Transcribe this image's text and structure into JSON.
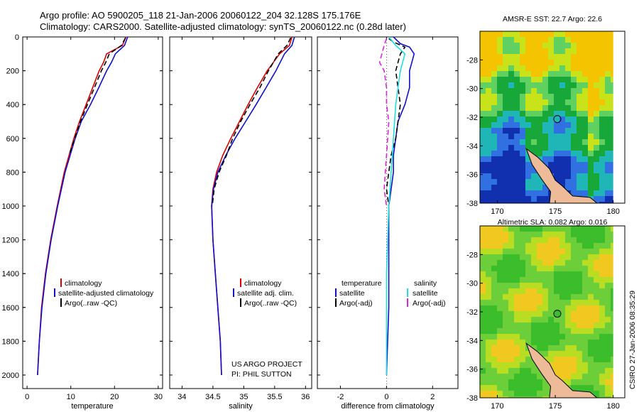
{
  "header": {
    "line1": "Argo profile: AO 5900205_118 21-Jan-2006 20060122_204 32.128S 175.176E",
    "line2": "Climatology: CARS2000. Satellite-adjusted climatology: synTS_20060122.nc (0.28d later)"
  },
  "credits": {
    "project": "US ARGO PROJECT",
    "pi": "PI: PHIL SUTTON",
    "stamp": "CSIRO 27-Jan-2006 08:35:29"
  },
  "colors": {
    "climatology": "#dd0000",
    "satellite": "#1010cc",
    "argo": "#000000",
    "cyan": "#22dddd",
    "magenta": "#dd22dd"
  },
  "chart_data": [
    {
      "type": "line",
      "xlabel": "temperature",
      "ylabel": "",
      "xlim": [
        -1,
        31
      ],
      "ylim": [
        2080,
        0
      ],
      "xticks": [
        0,
        10,
        20,
        30
      ],
      "yticks": [
        0,
        200,
        400,
        600,
        800,
        1000,
        1200,
        1400,
        1600,
        1800,
        2000
      ],
      "legend": [
        "climatology",
        "satellite-adjusted climatology",
        "Argo(..raw -QC)"
      ],
      "legend_position": "lower-right",
      "series": [
        {
          "name": "climatology",
          "color": "#dd0000",
          "dash": "solid",
          "depth": [
            0,
            50,
            100,
            150,
            200,
            300,
            400,
            500,
            600,
            800,
            1000,
            1200,
            1400,
            1600,
            1800,
            2000
          ],
          "values": [
            22.6,
            21.8,
            18.2,
            17.5,
            16.5,
            15.0,
            13.5,
            12.0,
            10.7,
            8.5,
            6.9,
            5.4,
            4.2,
            3.3,
            2.8,
            2.4
          ]
        },
        {
          "name": "satellite-adjusted climatology",
          "color": "#1010cc",
          "dash": "solid",
          "depth": [
            0,
            50,
            100,
            150,
            200,
            300,
            400,
            500,
            600,
            800,
            1000,
            1200,
            1400,
            1600,
            1800,
            2000
          ],
          "values": [
            23.0,
            22.3,
            20.2,
            19.3,
            18.2,
            16.4,
            14.5,
            12.4,
            11.0,
            8.7,
            7.0,
            5.5,
            4.3,
            3.4,
            2.8,
            2.4
          ]
        },
        {
          "name": "Argo(..raw -QC)",
          "color": "#000000",
          "dash": "dashed",
          "depth": [
            5,
            50,
            100,
            150,
            200,
            300,
            400,
            500,
            600,
            700
          ],
          "values": [
            22.5,
            21.6,
            18.8,
            18.0,
            17.0,
            15.4,
            13.8,
            12.2,
            10.9,
            9.6
          ]
        }
      ]
    },
    {
      "type": "line",
      "xlabel": "salinity",
      "ylabel": "",
      "xlim": [
        33.8,
        36.1
      ],
      "ylim": [
        2080,
        0
      ],
      "xticks": [
        34,
        34.5,
        35,
        35.5,
        36
      ],
      "legend": [
        "climatology",
        "satellite adj. clim.",
        "Argo(..raw -QC)"
      ],
      "legend_position": "lower-right",
      "series": [
        {
          "name": "climatology",
          "color": "#dd0000",
          "dash": "solid",
          "depth": [
            0,
            50,
            100,
            200,
            300,
            400,
            500,
            600,
            700,
            800,
            900,
            1000,
            1200,
            1400,
            1600,
            1800,
            2000
          ],
          "values": [
            35.78,
            35.74,
            35.58,
            35.38,
            35.22,
            35.07,
            34.93,
            34.79,
            34.66,
            34.56,
            34.5,
            34.48,
            34.5,
            34.54,
            34.58,
            34.62,
            34.64
          ]
        },
        {
          "name": "satellite adj. clim.",
          "color": "#1010cc",
          "dash": "solid",
          "depth": [
            0,
            50,
            100,
            200,
            300,
            400,
            500,
            600,
            700,
            800,
            900,
            1000,
            1200,
            1400,
            1600,
            1800,
            2000
          ],
          "values": [
            35.82,
            35.78,
            35.66,
            35.52,
            35.36,
            35.2,
            35.03,
            34.86,
            34.71,
            34.58,
            34.51,
            34.48,
            34.5,
            34.54,
            34.58,
            34.62,
            34.64
          ]
        },
        {
          "name": "Argo(..raw -QC)",
          "color": "#000000",
          "dash": "dashed",
          "depth": [
            5,
            50,
            100,
            200,
            300,
            400,
            500,
            600,
            700,
            800,
            900,
            1000
          ],
          "values": [
            35.76,
            35.7,
            35.56,
            35.4,
            35.26,
            35.1,
            34.95,
            34.82,
            34.72,
            34.6,
            34.52,
            34.49
          ]
        }
      ]
    },
    {
      "type": "line",
      "xlabel": "difference from climatology",
      "ylabel": "",
      "xlim": [
        -3,
        3.1
      ],
      "ylim": [
        2080,
        0
      ],
      "xticks": [
        -2,
        0,
        2
      ],
      "legend": [
        "temperature",
        "satellite",
        "Argo(-adj)",
        "salinity",
        "satellite",
        "Argo(-adj)"
      ],
      "legend_position": "lower-center",
      "series": [
        {
          "name": "satellite",
          "group": "temperature",
          "color": "#1010cc",
          "dash": "solid",
          "depth": [
            0,
            40,
            60,
            100,
            150,
            200,
            300,
            400,
            500,
            600,
            700,
            800,
            900,
            1000,
            1200,
            1400,
            1600,
            1800,
            2000
          ],
          "values": [
            0.3,
            0.6,
            1.0,
            1.2,
            1.1,
            1.0,
            1.0,
            0.8,
            0.5,
            0.4,
            0.3,
            0.3,
            0.2,
            0.1,
            0.1,
            0.1,
            0.1,
            0.05,
            0.0
          ]
        },
        {
          "name": "Argo(-adj)",
          "group": "temperature",
          "color": "#000000",
          "dash": "dashed",
          "depth": [
            10,
            30,
            60,
            100,
            150,
            200,
            300,
            400,
            500,
            600,
            700,
            800,
            900,
            1000
          ],
          "values": [
            0.1,
            0.3,
            0.8,
            0.6,
            0.5,
            0.4,
            0.5,
            0.6,
            0.5,
            0.4,
            0.2,
            0.1,
            0.0,
            0.1
          ]
        },
        {
          "name": "satellite",
          "group": "salinity",
          "color": "#22dddd",
          "dash": "solid",
          "depth": [
            0,
            50,
            100,
            200,
            300,
            400,
            600,
            800,
            1000,
            1200,
            1400,
            1600,
            1800,
            2000
          ],
          "values": [
            0.1,
            0.4,
            0.8,
            0.6,
            0.5,
            0.4,
            0.3,
            0.2,
            0.1,
            0.05,
            0.0,
            0.0,
            0.0,
            0.0
          ]
        },
        {
          "name": "Argo(-adj)",
          "group": "salinity",
          "color": "#dd22dd",
          "dash": "dashed",
          "depth": [
            10,
            50,
            100,
            150,
            200,
            300,
            400,
            500,
            700,
            900,
            1000
          ],
          "values": [
            0.0,
            -0.1,
            -0.2,
            -0.3,
            -0.1,
            0.0,
            0.0,
            0.1,
            0.0,
            -0.1,
            0.0
          ]
        }
      ]
    },
    {
      "type": "heatmap",
      "title": "AMSR-E SST: 22.7 Argo: 22.6",
      "xlim": [
        168.5,
        181
      ],
      "ylim": [
        -38,
        -26
      ],
      "xticks": [
        170,
        175,
        180
      ],
      "yticks": [
        -28,
        -30,
        -32,
        -34,
        -36,
        -38
      ],
      "marker": {
        "lon": 175.176,
        "lat": -32.128
      },
      "pixel_colors": [
        "#f5c400",
        "#c8e31a",
        "#60d060",
        "#18a83a",
        "#20b6b8",
        "#3070e0",
        "#1030b0"
      ]
    },
    {
      "type": "heatmap",
      "title": "Altimetric SLA: 0.082 Argo: 0.016",
      "xlim": [
        168.5,
        181
      ],
      "ylim": [
        -38,
        -26
      ],
      "xticks": [
        170,
        175,
        180
      ],
      "yticks": [
        -28,
        -30,
        -32,
        -34,
        -36,
        -38
      ],
      "marker": {
        "lon": 175.176,
        "lat": -32.128
      },
      "pixel_colors": [
        "#f0c820",
        "#b8dd22",
        "#6ccf3a",
        "#3cbe2c"
      ]
    }
  ]
}
